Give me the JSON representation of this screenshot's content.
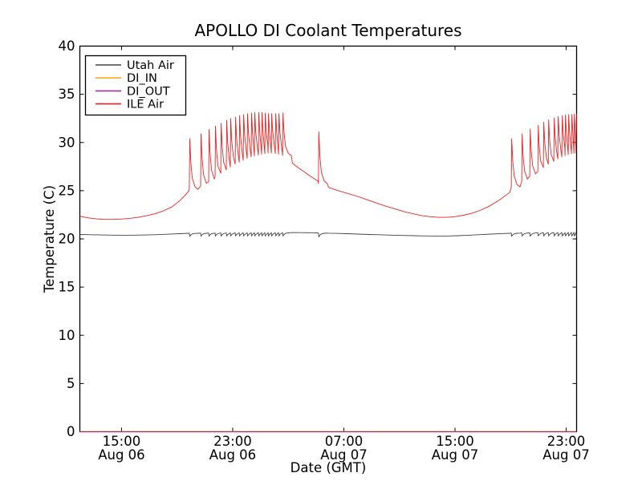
{
  "figure": {
    "background": "#ffffff"
  },
  "chart_data": {
    "type": "line",
    "title": "APOLLO DI Coolant Temperatures",
    "xlabel": "Date (GMT)",
    "ylabel": "Temperature (C)",
    "x_axis": {
      "min": 0,
      "max": 35.75,
      "unit": "hours from Aug 06 ~12:00 GMT",
      "ticks": [
        {
          "t": 3,
          "time": "15:00",
          "date": "Aug 06"
        },
        {
          "t": 11,
          "time": "23:00",
          "date": "Aug 06"
        },
        {
          "t": 19,
          "time": "07:00",
          "date": "Aug 07"
        },
        {
          "t": 27,
          "time": "15:00",
          "date": "Aug 07"
        },
        {
          "t": 35,
          "time": "23:00",
          "date": "Aug 07"
        }
      ]
    },
    "y_axis": {
      "min": 0,
      "max": 40,
      "ticks": [
        0,
        5,
        10,
        15,
        20,
        25,
        30,
        35,
        40
      ]
    },
    "legend": {
      "position": "upper-left",
      "entries": [
        "Utah Air",
        "DI_IN",
        "DI_OUT",
        "ILE Air"
      ]
    },
    "series": [
      {
        "name": "Utah Air",
        "color": "#444444",
        "width": 0.9,
        "segments": [
          {
            "type": "points",
            "pts": [
              [
                0,
                20.46
              ],
              [
                0.8,
                20.43
              ],
              [
                1.6,
                20.41
              ],
              [
                2.4,
                20.39
              ],
              [
                3.2,
                20.38
              ],
              [
                4,
                20.39
              ],
              [
                4.8,
                20.41
              ],
              [
                5.6,
                20.44
              ],
              [
                6.4,
                20.49
              ],
              [
                7.2,
                20.54
              ],
              [
                7.85,
                20.58
              ]
            ]
          },
          {
            "type": "spikes",
            "events": [
              [
                7.91,
                20.26,
                20.58
              ],
              [
                8.72,
                20.28,
                20.6
              ],
              [
                9.3,
                20.28,
                20.61
              ],
              [
                9.76,
                20.29,
                20.61
              ],
              [
                10.17,
                20.29,
                20.62
              ],
              [
                10.57,
                20.29,
                20.62
              ],
              [
                10.86,
                20.3,
                20.63
              ],
              [
                11.21,
                20.3,
                20.63
              ],
              [
                11.5,
                20.3,
                20.63
              ],
              [
                11.79,
                20.3,
                20.64
              ],
              [
                12.07,
                20.3,
                20.64
              ],
              [
                12.36,
                20.3,
                20.64
              ],
              [
                12.59,
                20.3,
                20.65
              ],
              [
                12.88,
                20.3,
                20.65
              ],
              [
                13.11,
                20.3,
                20.65
              ],
              [
                13.34,
                20.3,
                20.65
              ],
              [
                13.58,
                20.3,
                20.65
              ],
              [
                13.81,
                20.3,
                20.65
              ],
              [
                14.1,
                20.3,
                20.65
              ],
              [
                14.33,
                20.3,
                20.65
              ],
              [
                14.62,
                20.3,
                20.65
              ]
            ]
          },
          {
            "type": "points",
            "pts": [
              [
                15.3,
                20.66
              ],
              [
                16,
                20.65
              ],
              [
                16.6,
                20.64
              ],
              [
                17.1,
                20.62
              ]
            ]
          },
          {
            "type": "spikes",
            "events": [
              [
                17.2,
                20.2,
                20.6
              ]
            ]
          },
          {
            "type": "points",
            "pts": [
              [
                17.9,
                20.59
              ],
              [
                18.4,
                20.57
              ],
              [
                19.2,
                20.54
              ],
              [
                20,
                20.5
              ],
              [
                20.8,
                20.46
              ],
              [
                21.6,
                20.43
              ],
              [
                22.4,
                20.39
              ],
              [
                23.2,
                20.36
              ],
              [
                24,
                20.33
              ],
              [
                24.8,
                20.31
              ],
              [
                25.6,
                20.3
              ],
              [
                26.4,
                20.3
              ],
              [
                27.2,
                20.33
              ],
              [
                28,
                20.38
              ],
              [
                28.8,
                20.44
              ],
              [
                29.6,
                20.5
              ],
              [
                30.3,
                20.55
              ],
              [
                30.95,
                20.58
              ]
            ]
          },
          {
            "type": "spikes",
            "events": [
              [
                31.08,
                20.27,
                20.6
              ],
              [
                31.83,
                20.29,
                20.62
              ],
              [
                32.41,
                20.29,
                20.63
              ],
              [
                32.99,
                20.3,
                20.64
              ],
              [
                33.39,
                20.3,
                20.65
              ],
              [
                33.74,
                20.3,
                20.65
              ],
              [
                34.14,
                20.3,
                20.66
              ],
              [
                34.43,
                20.3,
                20.66
              ],
              [
                34.72,
                20.3,
                20.66
              ],
              [
                34.95,
                20.3,
                20.67
              ],
              [
                35.18,
                20.3,
                20.67
              ],
              [
                35.41,
                20.3,
                20.67
              ],
              [
                35.59,
                20.3,
                20.67
              ],
              [
                35.74,
                20.3,
                20.67
              ]
            ]
          }
        ]
      },
      {
        "name": "DI_IN",
        "color": "#ffaa22",
        "width": 1.4,
        "segments": [
          {
            "type": "points",
            "pts": [
              [
                0,
                0
              ],
              [
                35.75,
                0
              ]
            ]
          }
        ]
      },
      {
        "name": "DI_OUT",
        "color": "#993399",
        "width": 1.0,
        "segments": [
          {
            "type": "points",
            "pts": [
              [
                0,
                0
              ],
              [
                35.75,
                0
              ]
            ]
          }
        ]
      },
      {
        "name": "ILE Air",
        "color": "#ee2222",
        "width": 0.9,
        "segments": [
          {
            "type": "points",
            "pts": [
              [
                0,
                22.35
              ],
              [
                0.6,
                22.18
              ],
              [
                1.2,
                22.07
              ],
              [
                1.8,
                22.02
              ],
              [
                2.4,
                22.02
              ],
              [
                3,
                22.06
              ],
              [
                3.6,
                22.13
              ],
              [
                4.2,
                22.24
              ],
              [
                4.8,
                22.4
              ],
              [
                5.4,
                22.6
              ],
              [
                6,
                22.9
              ],
              [
                6.6,
                23.3
              ],
              [
                7.1,
                23.85
              ],
              [
                7.5,
                24.4
              ],
              [
                7.85,
                25.0
              ]
            ]
          },
          {
            "type": "spikes",
            "events": [
              [
                7.91,
                30.4,
                25.15
              ],
              [
                8.72,
                30.9,
                25.5
              ],
              [
                9.3,
                31.35,
                25.95
              ],
              [
                9.76,
                31.7,
                26.4
              ],
              [
                10.17,
                32.0,
                26.8
              ],
              [
                10.57,
                32.3,
                27.15
              ],
              [
                10.86,
                32.5,
                27.45
              ],
              [
                11.21,
                32.65,
                27.75
              ],
              [
                11.5,
                32.8,
                27.95
              ],
              [
                11.79,
                32.9,
                28.15
              ],
              [
                12.07,
                33.0,
                28.35
              ],
              [
                12.36,
                33.05,
                28.5
              ],
              [
                12.59,
                33.1,
                28.6
              ],
              [
                12.88,
                33.1,
                28.7
              ],
              [
                13.11,
                33.1,
                28.78
              ],
              [
                13.34,
                33.05,
                28.85
              ],
              [
                13.58,
                33.0,
                28.9
              ],
              [
                13.81,
                33.0,
                28.9
              ],
              [
                14.1,
                33.0,
                28.85
              ],
              [
                14.33,
                33.0,
                28.78
              ],
              [
                14.62,
                33.05,
                28.65
              ]
            ]
          },
          {
            "type": "points",
            "pts": [
              [
                15.3,
                27.85
              ],
              [
                15.7,
                27.4
              ],
              [
                16.1,
                27.0
              ],
              [
                16.5,
                26.6
              ],
              [
                16.9,
                26.2
              ],
              [
                17.14,
                26.0
              ]
            ]
          },
          {
            "type": "spikes",
            "events": [
              [
                17.2,
                31.1,
                25.75
              ]
            ]
          },
          {
            "type": "points",
            "pts": [
              [
                17.9,
                25.35
              ],
              [
                18.5,
                25.05
              ],
              [
                19.2,
                24.75
              ],
              [
                19.9,
                24.45
              ],
              [
                20.6,
                24.1
              ],
              [
                21.3,
                23.75
              ],
              [
                22,
                23.4
              ],
              [
                22.7,
                23.1
              ],
              [
                23.4,
                22.8
              ],
              [
                24,
                22.6
              ],
              [
                24.6,
                22.42
              ],
              [
                25.2,
                22.3
              ],
              [
                25.8,
                22.24
              ],
              [
                26.4,
                22.24
              ],
              [
                27,
                22.3
              ],
              [
                27.6,
                22.45
              ],
              [
                28.2,
                22.65
              ],
              [
                28.8,
                22.95
              ],
              [
                29.4,
                23.35
              ],
              [
                30,
                23.85
              ],
              [
                30.5,
                24.35
              ],
              [
                30.95,
                24.85
              ]
            ]
          },
          {
            "type": "spikes",
            "events": [
              [
                31.08,
                30.4,
                25.4
              ],
              [
                31.83,
                30.9,
                25.95
              ],
              [
                32.41,
                31.4,
                26.5
              ],
              [
                32.99,
                31.8,
                27.0
              ],
              [
                33.39,
                32.1,
                27.4
              ],
              [
                33.74,
                32.35,
                27.75
              ],
              [
                34.14,
                32.55,
                28.05
              ],
              [
                34.43,
                32.7,
                28.3
              ],
              [
                34.72,
                32.8,
                28.5
              ],
              [
                34.95,
                32.85,
                28.65
              ],
              [
                35.18,
                32.9,
                28.75
              ],
              [
                35.41,
                32.9,
                28.85
              ],
              [
                35.59,
                32.95,
                28.9
              ],
              [
                35.74,
                33.0,
                28.9
              ]
            ]
          }
        ]
      }
    ]
  }
}
